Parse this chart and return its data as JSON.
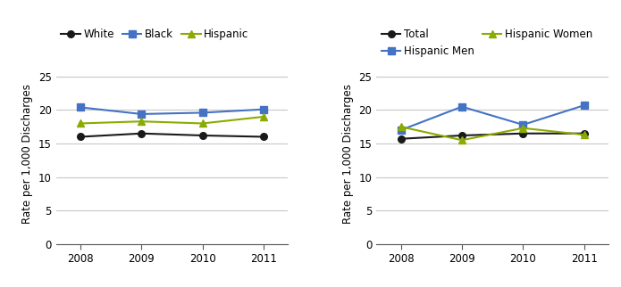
{
  "years": [
    2008,
    2009,
    2010,
    2011
  ],
  "chart1": {
    "White": [
      16.0,
      16.5,
      16.2,
      16.0
    ],
    "Black": [
      20.4,
      19.4,
      19.6,
      20.1
    ],
    "Hispanic": [
      18.0,
      18.3,
      18.0,
      19.0
    ]
  },
  "chart2": {
    "Total": [
      15.7,
      16.2,
      16.5,
      16.5
    ],
    "Hispanic Men": [
      17.0,
      20.5,
      17.8,
      20.7
    ],
    "Hispanic Women": [
      17.5,
      15.5,
      17.3,
      16.3
    ]
  },
  "colors": {
    "White": "#1a1a1a",
    "Black": "#4472c4",
    "Hispanic": "#8aab00",
    "Total": "#1a1a1a",
    "Hispanic Men": "#4472c4",
    "Hispanic Women": "#8aab00"
  },
  "markers": {
    "White": "o",
    "Black": "s",
    "Hispanic": "^",
    "Total": "o",
    "Hispanic Men": "s",
    "Hispanic Women": "^"
  },
  "ylabel": "Rate per 1,000 Discharges",
  "ylim": [
    0,
    27
  ],
  "yticks": [
    0,
    5,
    10,
    15,
    20,
    25
  ],
  "xlim": [
    2007.6,
    2011.4
  ],
  "font_size": 8.5,
  "tick_font_size": 8.5
}
